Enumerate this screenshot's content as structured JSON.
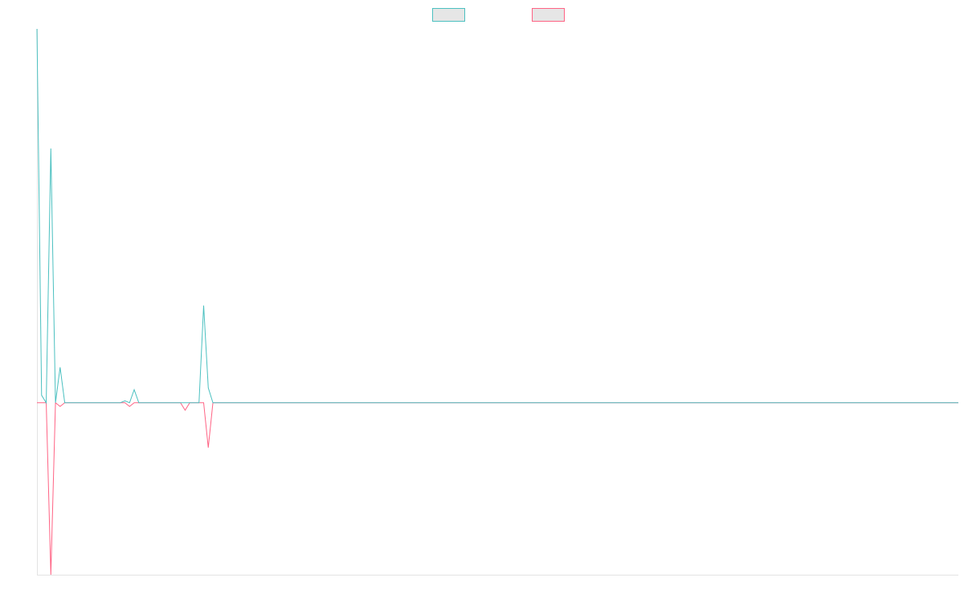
{
  "chart_data": {
    "type": "line",
    "title": "",
    "xlabel": "",
    "ylabel": "",
    "grid": false,
    "legend": {
      "placement": "top-center"
    },
    "ylim": [
      -92,
      200
    ],
    "xlim": [
      0,
      199
    ],
    "series": [
      {
        "name": "",
        "color": "#4bc0c0",
        "fill": "#e6e6e6",
        "points": [
          [
            0,
            200
          ],
          [
            1,
            4
          ],
          [
            3,
            136
          ],
          [
            5,
            19
          ],
          [
            19,
            1
          ],
          [
            21,
            7
          ],
          [
            36,
            52
          ],
          [
            37,
            8
          ],
          [
            199,
            0
          ]
        ]
      },
      {
        "name": "",
        "color": "#ff6384",
        "fill": "#e6e6e6",
        "points": [
          [
            3,
            -92
          ],
          [
            5,
            -2
          ],
          [
            20,
            -2
          ],
          [
            32,
            -4
          ],
          [
            37,
            -24
          ],
          [
            199,
            0
          ]
        ]
      }
    ]
  }
}
